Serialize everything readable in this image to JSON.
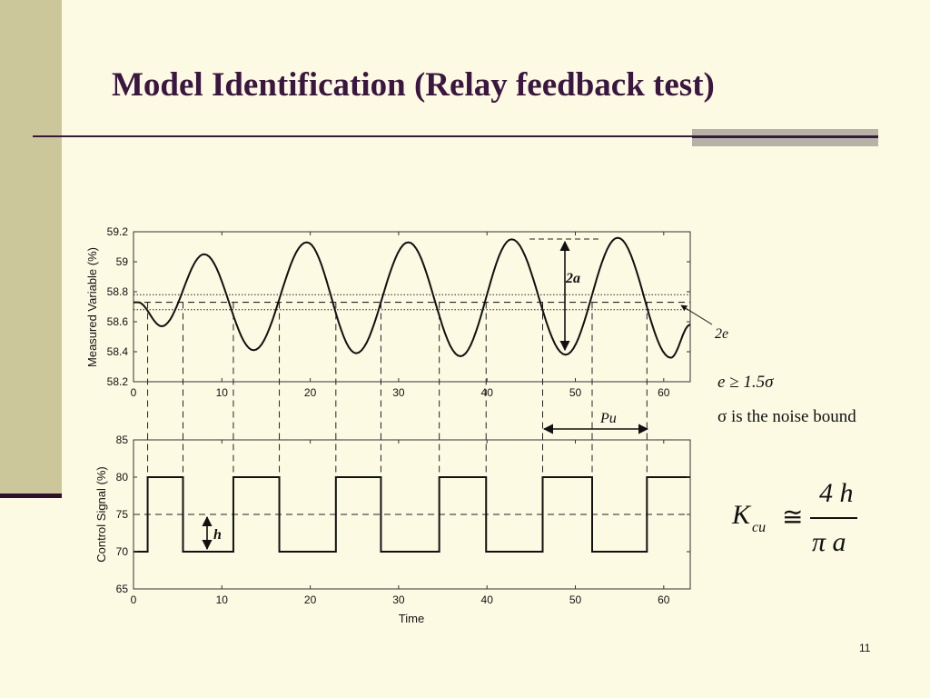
{
  "slide": {
    "title": "Model Identification (Relay feedback test)",
    "page_number": "11",
    "accent_color": "#3a1640",
    "side_band_color": "#cbc79a",
    "background_color": "#fdfae3"
  },
  "figure": {
    "top_plot": {
      "ylabel": "Measured Variable (%)",
      "yticks": [
        "59.2",
        "59",
        "58.8",
        "58.6",
        "58.4",
        "58.2"
      ],
      "xticks": [
        "0",
        "10",
        "20",
        "30",
        "40",
        "50",
        "60"
      ],
      "ylim": [
        58.2,
        59.2
      ],
      "xlim": [
        0,
        63
      ],
      "setpoint": 58.73,
      "noise_band": [
        58.68,
        58.78
      ]
    },
    "bottom_plot": {
      "ylabel": "Control Signal (%)",
      "yticks": [
        "85",
        "80",
        "75",
        "70",
        "65"
      ],
      "xticks": [
        "0",
        "10",
        "20",
        "30",
        "40",
        "50",
        "60"
      ],
      "xlabel": "Time",
      "ylim": [
        65,
        85
      ],
      "xlim": [
        0,
        63
      ],
      "bias": 75,
      "high": 80,
      "low": 70
    },
    "annotations": {
      "amplitude": "2a",
      "hysteresis": "2e",
      "period": "Pu",
      "relay_height": "h"
    }
  },
  "equations": {
    "hysteresis_condition": "e ≥ 1.5σ",
    "noise_note": "σ is the noise bound",
    "ultimate_gain": {
      "lhs": "K",
      "lhs_sub": "cu",
      "relation": "≅",
      "numerator": "4 h",
      "denominator": "π a"
    }
  }
}
